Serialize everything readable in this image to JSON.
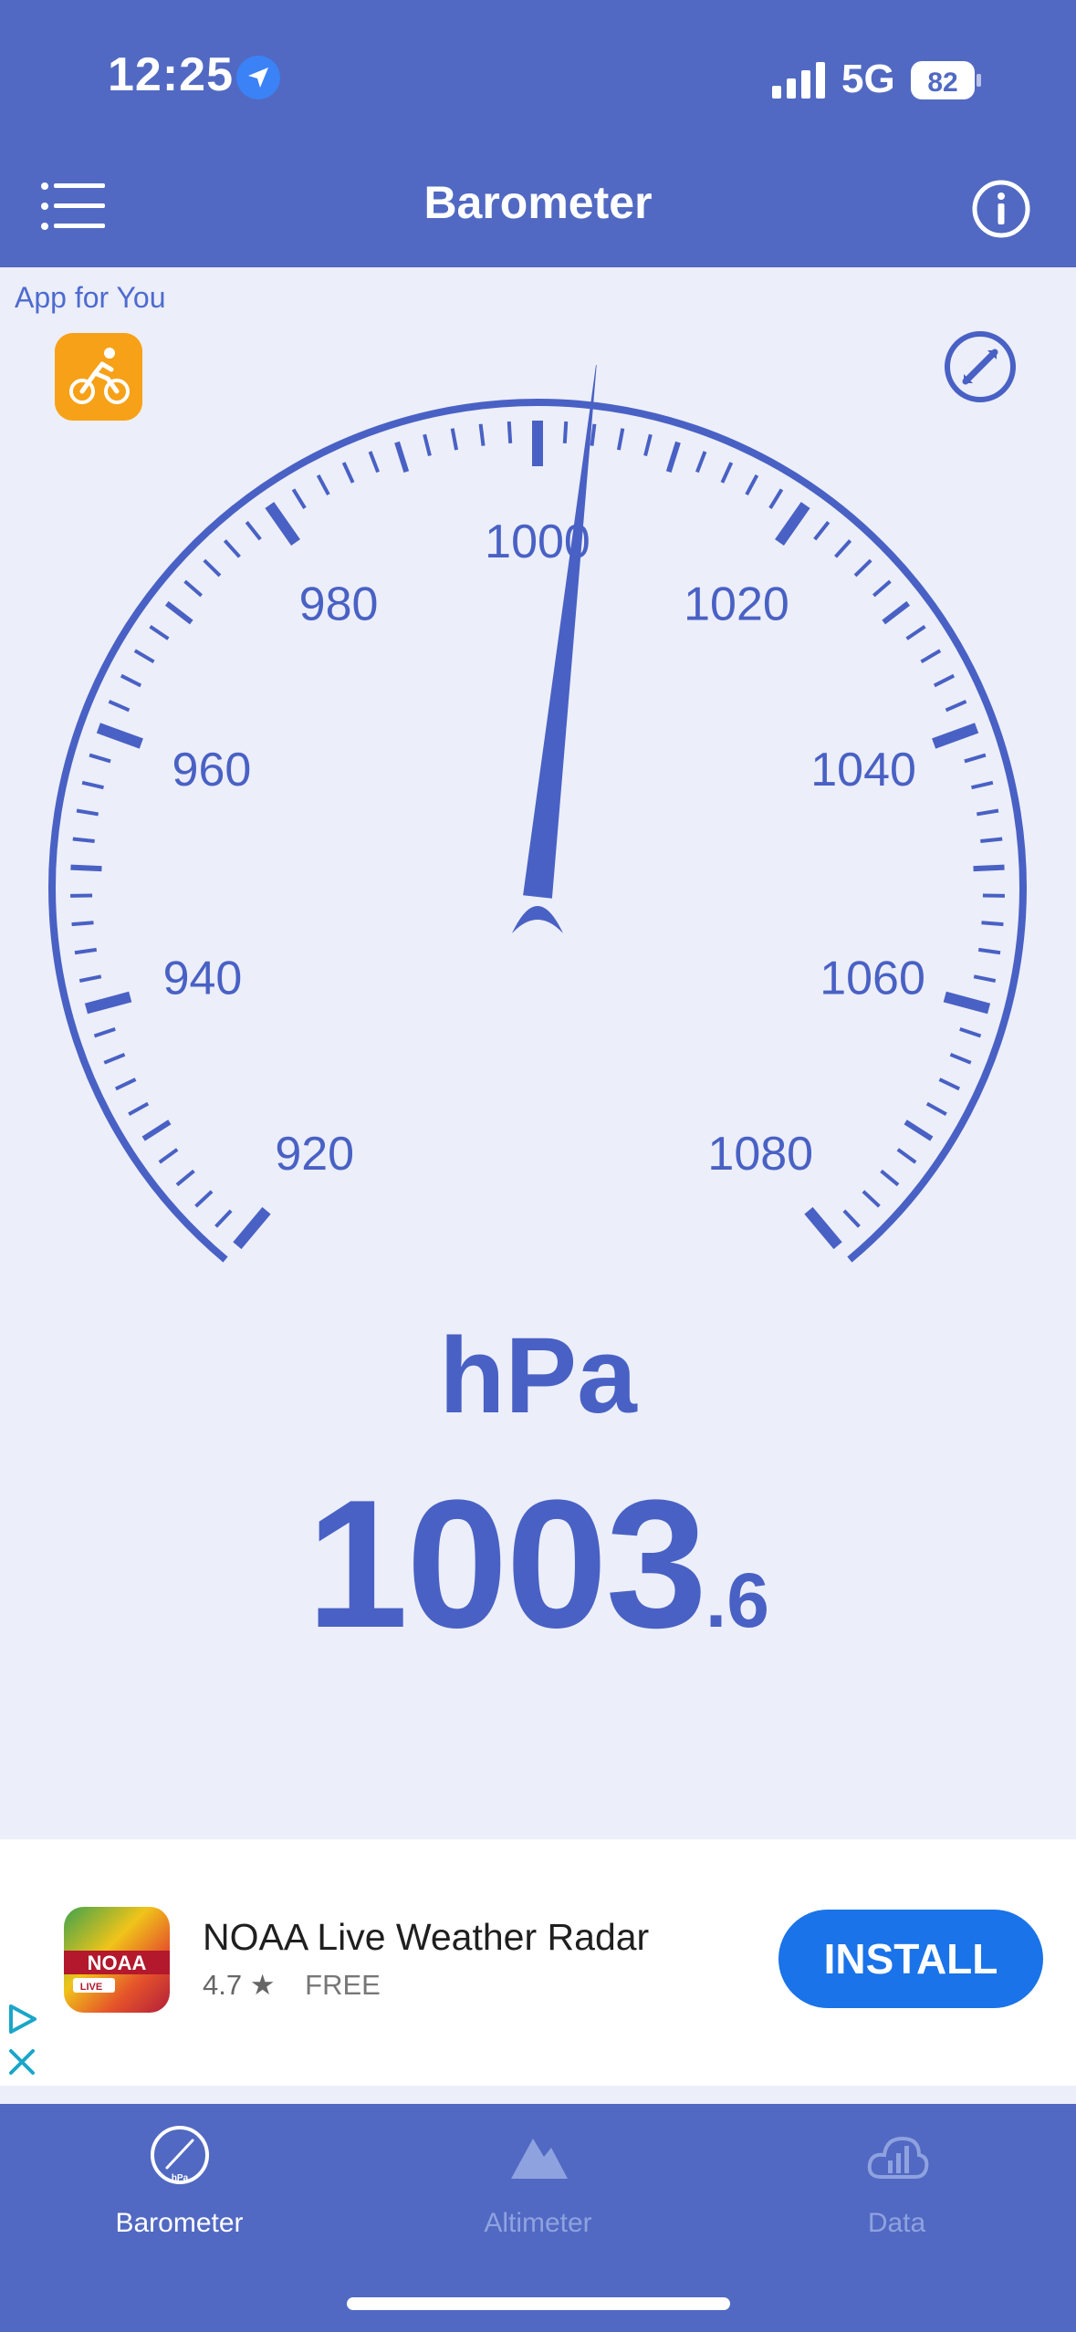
{
  "status_bar": {
    "time": "12:25",
    "network": "5G",
    "battery": "82"
  },
  "nav": {
    "title": "Barometer"
  },
  "promo": {
    "label": "App for You"
  },
  "gauge": {
    "min": 920,
    "max": 1080,
    "major_step": 20,
    "minor_step": 2,
    "value": 1003.6,
    "tick_labels": [
      "920",
      "940",
      "960",
      "980",
      "1000",
      "1020",
      "1040",
      "1060",
      "1080"
    ],
    "color": "#4961c4"
  },
  "reading": {
    "unit": "hPa",
    "whole": "1003",
    "fraction": ".6"
  },
  "ad": {
    "app_name": "NOAA Live Weather Radar",
    "rating": "4.7",
    "price": "FREE",
    "cta": "INSTALL",
    "icon_badge": "NOAA",
    "icon_tag": "LIVE"
  },
  "tabs": [
    {
      "label": "Barometer",
      "active": true
    },
    {
      "label": "Altimeter",
      "active": false
    },
    {
      "label": "Data",
      "active": false
    }
  ],
  "colors": {
    "header": "#5169c2",
    "background": "#eceef9",
    "accent": "#4961c4",
    "cta": "#1a73e8"
  }
}
